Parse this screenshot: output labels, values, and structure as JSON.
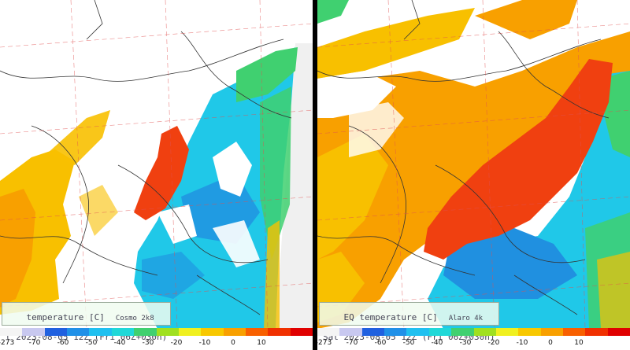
{
  "panels": [
    {
      "id": "left",
      "title": "temperature [C]",
      "model": "Cosmo 2k8",
      "date_line": "t 2023-08-05 12Z (Fri 06Z+030h)"
    },
    {
      "id": "right",
      "title": "EQ temperature [C]",
      "model": "Alaro 4k",
      "date_line": "Sat 2023-08-05 12Z (Fri 06Z+030h)"
    }
  ],
  "colorbar": {
    "ticks": [
      "-273",
      "-70",
      "-60",
      "-50",
      "-40",
      "-30",
      "-20",
      "-10",
      "0",
      "10"
    ],
    "colors": [
      "#f4f4f4",
      "#c8c8f0",
      "#2060e0",
      "#2090e8",
      "#20c0f0",
      "#20d8d8",
      "#40d070",
      "#a0e020",
      "#f0f020",
      "#f8c800",
      "#f8a000",
      "#f86000",
      "#f03000",
      "#e00000"
    ]
  },
  "legend_colors": {
    "warm_red": "#f04010",
    "orange": "#f8a000",
    "yellow_orange": "#f8c000",
    "cyan": "#20c8e8",
    "blue": "#2090e0",
    "green": "#40c040"
  }
}
